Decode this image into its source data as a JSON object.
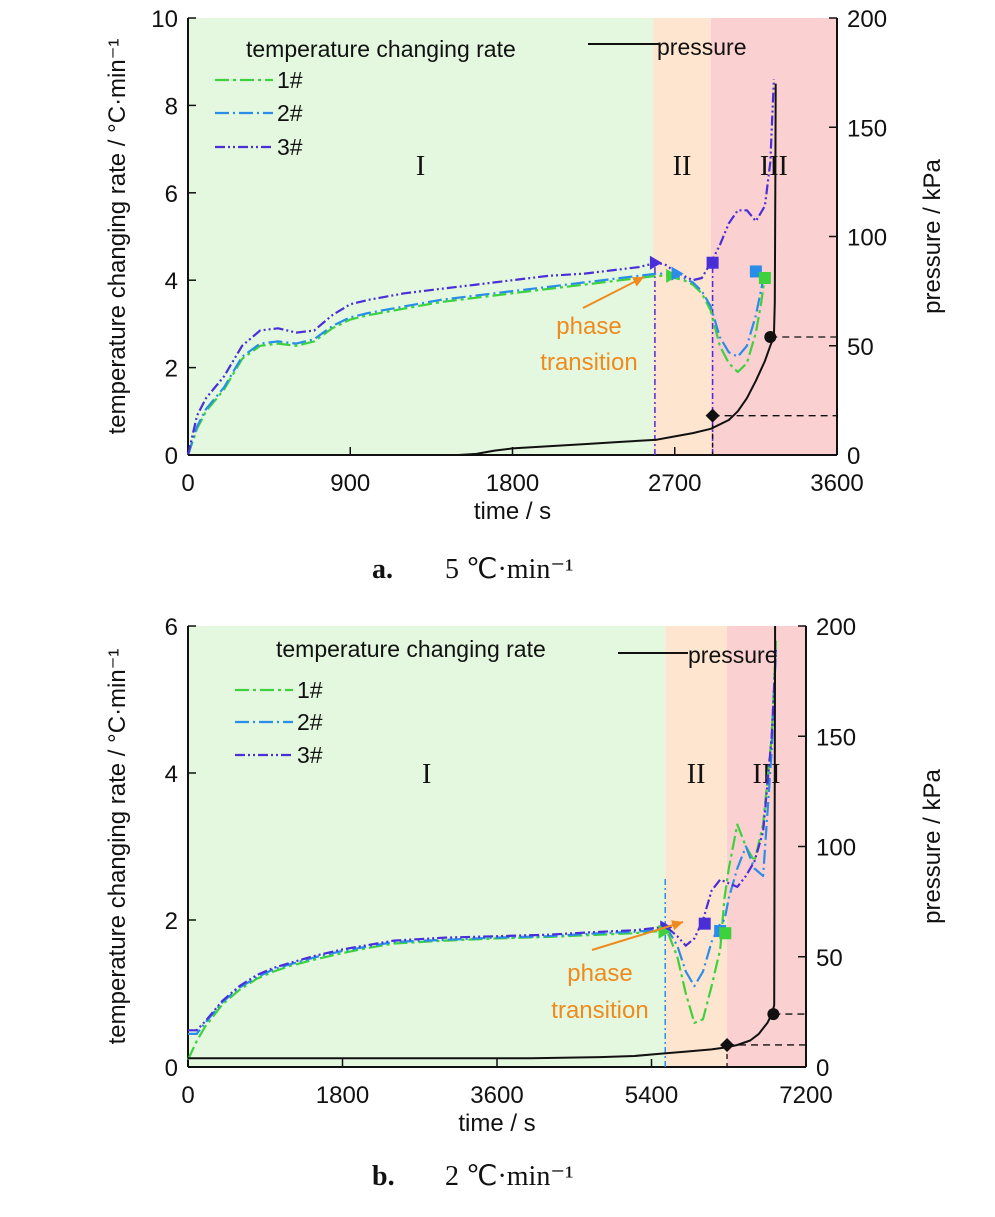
{
  "chart_data": [
    {
      "type": "line",
      "panel": "a",
      "caption_letter": "a.",
      "caption_text": "5 ℃·min⁻¹",
      "xlabel": "time / s",
      "ylabel": "temperature changing rate / °C·min⁻¹",
      "y2label": "pressure / kPa",
      "xlim": [
        0,
        3600
      ],
      "ylim": [
        0,
        10
      ],
      "y2lim": [
        0,
        200
      ],
      "xticks": [
        "0",
        "900",
        "1800",
        "2700",
        "3600"
      ],
      "yticks": [
        "0",
        "2",
        "4",
        "6",
        "8",
        "10"
      ],
      "y2ticks": [
        "0",
        "50",
        "100",
        "150",
        "200"
      ],
      "legend_title": "temperature changing rate",
      "pressure_label": "pressure",
      "regions": [
        {
          "label": "I",
          "x0": 0,
          "x1": 2580,
          "color": "#e4f8e0"
        },
        {
          "label": "II",
          "x0": 2580,
          "x1": 2900,
          "color": "#fde5cf"
        },
        {
          "label": "III",
          "x0": 2900,
          "x1": 3600,
          "color": "#fbd0d0"
        }
      ],
      "annotation": {
        "line1": "phase",
        "line2": "transition"
      },
      "series": [
        {
          "name": "1#",
          "color": "#3dd13d",
          "dash": "14 4 3 4",
          "x": [
            0,
            50,
            100,
            200,
            300,
            400,
            500,
            600,
            700,
            800,
            900,
            1000,
            1200,
            1400,
            1600,
            1800,
            2000,
            2200,
            2400,
            2500,
            2600,
            2650,
            2700,
            2750,
            2800,
            2850,
            2900,
            2950,
            3000,
            3050,
            3100,
            3150,
            3180,
            3200
          ],
          "y": [
            0,
            0.6,
            1.0,
            1.5,
            2.2,
            2.5,
            2.55,
            2.5,
            2.6,
            2.9,
            3.1,
            3.2,
            3.35,
            3.5,
            3.6,
            3.7,
            3.8,
            3.9,
            4.0,
            4.05,
            4.1,
            4.1,
            4.05,
            4.0,
            3.9,
            3.7,
            3.3,
            2.5,
            2.1,
            1.9,
            2.1,
            2.8,
            3.5,
            4.1
          ]
        },
        {
          "name": "2#",
          "color": "#2a8de8",
          "dash": "14 4 2 4",
          "x": [
            0,
            50,
            100,
            200,
            300,
            400,
            500,
            600,
            700,
            800,
            900,
            1000,
            1200,
            1400,
            1600,
            1800,
            2000,
            2200,
            2400,
            2500,
            2600,
            2650,
            2700,
            2750,
            2800,
            2850,
            2900,
            2950,
            3000,
            3050,
            3100,
            3150,
            3180,
            3200
          ],
          "y": [
            0,
            0.65,
            1.05,
            1.55,
            2.25,
            2.55,
            2.6,
            2.55,
            2.65,
            2.95,
            3.15,
            3.25,
            3.4,
            3.55,
            3.65,
            3.75,
            3.85,
            3.95,
            4.05,
            4.1,
            4.15,
            4.15,
            4.1,
            4.05,
            3.95,
            3.75,
            3.4,
            2.7,
            2.35,
            2.25,
            2.5,
            3.2,
            3.8,
            4.2
          ]
        },
        {
          "name": "3#",
          "color": "#4a2fd8",
          "dash": "10 3 2 3 2 3",
          "x": [
            0,
            50,
            100,
            200,
            300,
            400,
            500,
            600,
            700,
            800,
            900,
            1000,
            1200,
            1400,
            1600,
            1800,
            2000,
            2200,
            2400,
            2500,
            2600,
            2650,
            2700,
            2750,
            2800,
            2850,
            2900,
            2950,
            3000,
            3050,
            3100,
            3150,
            3200,
            3230,
            3250
          ],
          "y": [
            0,
            0.9,
            1.3,
            1.8,
            2.5,
            2.85,
            2.9,
            2.8,
            2.85,
            3.2,
            3.45,
            3.55,
            3.7,
            3.8,
            3.9,
            4.0,
            4.1,
            4.15,
            4.25,
            4.3,
            4.4,
            4.35,
            4.2,
            4.1,
            4.0,
            4.05,
            4.4,
            4.8,
            5.3,
            5.6,
            5.6,
            5.35,
            5.7,
            6.7,
            8.6
          ]
        },
        {
          "name": "pressure",
          "color": "#111111",
          "axis": "right",
          "x": [
            0,
            500,
            1000,
            1500,
            1600,
            1700,
            1800,
            2000,
            2200,
            2400,
            2600,
            2700,
            2800,
            2900,
            3000,
            3050,
            3100,
            3150,
            3200,
            3230,
            3250,
            3255,
            3258,
            3260
          ],
          "y": [
            0,
            0,
            0,
            0,
            0.5,
            2,
            3,
            4,
            5,
            6,
            7,
            8.5,
            10,
            12,
            16,
            20,
            26,
            34,
            43,
            50,
            54,
            70,
            120,
            170
          ]
        }
      ],
      "markers": [
        {
          "series": "1#",
          "shape": "tri",
          "x": 2680,
          "y": 4.1
        },
        {
          "series": "2#",
          "shape": "tri",
          "x": 2710,
          "y": 4.15
        },
        {
          "series": "3#",
          "shape": "tri",
          "x": 2590,
          "y": 4.4
        },
        {
          "series": "3#",
          "shape": "sq",
          "x": 2910,
          "y": 4.4
        },
        {
          "series": "2#",
          "shape": "sq",
          "x": 3150,
          "y": 4.2
        },
        {
          "series": "1#",
          "shape": "sq",
          "x": 3200,
          "y": 4.05
        }
      ],
      "pressure_points": [
        {
          "shape": "diamond",
          "x": 2910,
          "y": 18
        },
        {
          "shape": "dot",
          "x": 3230,
          "y": 54
        }
      ],
      "vlines": [
        {
          "x": 2590,
          "color": "#4a2fd8"
        },
        {
          "x": 2910,
          "color": "#4a2fd8"
        }
      ]
    },
    {
      "type": "line",
      "panel": "b",
      "caption_letter": "b.",
      "caption_text": "2 ℃·min⁻¹",
      "xlabel": "time / s",
      "ylabel": "temperature changing rate / °C·min⁻¹",
      "y2label": "pressure / kPa",
      "xlim": [
        0,
        7200
      ],
      "ylim": [
        0,
        6
      ],
      "y2lim": [
        0,
        200
      ],
      "xticks": [
        "0",
        "1800",
        "3600",
        "5400",
        "7200"
      ],
      "yticks": [
        "0",
        "2",
        "4",
        "6"
      ],
      "y2ticks": [
        "0",
        "50",
        "100",
        "150",
        "200"
      ],
      "legend_title": "temperature changing rate",
      "pressure_label": "pressure",
      "regions": [
        {
          "label": "I",
          "x0": 0,
          "x1": 5560,
          "color": "#e4f8e0"
        },
        {
          "label": "II",
          "x0": 5560,
          "x1": 6280,
          "color": "#fde5cf"
        },
        {
          "label": "III",
          "x0": 6280,
          "x1": 7200,
          "color": "#fbd0d0"
        }
      ],
      "annotation": {
        "line1": "phase",
        "line2": "transition"
      },
      "series": [
        {
          "name": "1#",
          "color": "#3dd13d",
          "dash": "14 4 3 4",
          "x": [
            0,
            100,
            200,
            400,
            600,
            800,
            1000,
            1200,
            1500,
            1800,
            2100,
            2400,
            3000,
            3600,
            4200,
            4800,
            5200,
            5500,
            5600,
            5700,
            5800,
            5900,
            6000,
            6100,
            6200,
            6250,
            6300,
            6400,
            6500,
            6600,
            6700,
            6800,
            6850
          ],
          "y": [
            0.1,
            0.35,
            0.55,
            0.85,
            1.05,
            1.2,
            1.3,
            1.38,
            1.47,
            1.55,
            1.62,
            1.68,
            1.72,
            1.75,
            1.77,
            1.8,
            1.82,
            1.85,
            1.8,
            1.5,
            1.0,
            0.6,
            0.65,
            1.1,
            1.6,
            2.3,
            2.7,
            3.3,
            3.0,
            2.8,
            3.3,
            4.5,
            5.8
          ]
        },
        {
          "name": "2#",
          "color": "#2a8de8",
          "dash": "14 4 2 4",
          "x": [
            0,
            100,
            200,
            400,
            600,
            800,
            1000,
            1200,
            1500,
            1800,
            2100,
            2400,
            3000,
            3600,
            4200,
            4800,
            5200,
            5500,
            5600,
            5700,
            5800,
            5900,
            6000,
            6100,
            6200,
            6250,
            6300,
            6400,
            6500,
            6600,
            6700,
            6800,
            6850
          ],
          "y": [
            0.45,
            0.45,
            0.6,
            0.88,
            1.08,
            1.22,
            1.33,
            1.4,
            1.5,
            1.58,
            1.64,
            1.7,
            1.73,
            1.76,
            1.78,
            1.82,
            1.84,
            1.87,
            1.85,
            1.65,
            1.3,
            1.1,
            1.3,
            1.7,
            1.95,
            2.0,
            2.3,
            2.7,
            3.0,
            2.7,
            2.6,
            4.3,
            5.7
          ]
        },
        {
          "name": "3#",
          "color": "#4a2fd8",
          "dash": "10 3 2 3 2 3",
          "x": [
            0,
            100,
            200,
            400,
            600,
            800,
            1000,
            1200,
            1500,
            1800,
            2100,
            2400,
            3000,
            3600,
            4200,
            4800,
            5200,
            5500,
            5600,
            5700,
            5800,
            5900,
            6000,
            6100,
            6200,
            6300,
            6400,
            6500,
            6600,
            6700,
            6800,
            6850
          ],
          "y": [
            0.5,
            0.5,
            0.62,
            0.9,
            1.1,
            1.25,
            1.35,
            1.42,
            1.52,
            1.6,
            1.66,
            1.72,
            1.76,
            1.78,
            1.8,
            1.84,
            1.86,
            1.9,
            1.88,
            1.78,
            1.65,
            1.75,
            2.0,
            2.4,
            2.55,
            2.5,
            2.45,
            2.6,
            2.8,
            3.2,
            4.5,
            5.7
          ]
        },
        {
          "name": "pressure",
          "color": "#111111",
          "axis": "right",
          "x": [
            0,
            1000,
            2000,
            3000,
            4000,
            4800,
            5200,
            5500,
            5800,
            6100,
            6280,
            6400,
            6550,
            6650,
            6750,
            6800,
            6830,
            6835,
            6840
          ],
          "y": [
            4,
            4,
            4,
            4,
            4,
            4.5,
            5,
            6,
            7,
            8,
            9,
            10,
            12,
            15,
            20,
            24,
            28,
            120,
            200
          ]
        }
      ],
      "markers": [
        {
          "series": "3#",
          "shape": "tri",
          "x": 5560,
          "y": 1.9
        },
        {
          "series": "1#",
          "shape": "tri",
          "x": 5540,
          "y": 1.84
        },
        {
          "series": "3#",
          "shape": "sq",
          "x": 6020,
          "y": 1.95
        },
        {
          "series": "2#",
          "shape": "sq",
          "x": 6200,
          "y": 1.85
        },
        {
          "series": "1#",
          "shape": "sq",
          "x": 6260,
          "y": 1.82
        }
      ],
      "pressure_points": [
        {
          "shape": "diamond",
          "x": 6280,
          "y": 10
        },
        {
          "shape": "dot",
          "x": 6820,
          "y": 24
        }
      ],
      "vlines": [
        {
          "x": 5560,
          "color": "#2a8de8"
        }
      ]
    }
  ]
}
